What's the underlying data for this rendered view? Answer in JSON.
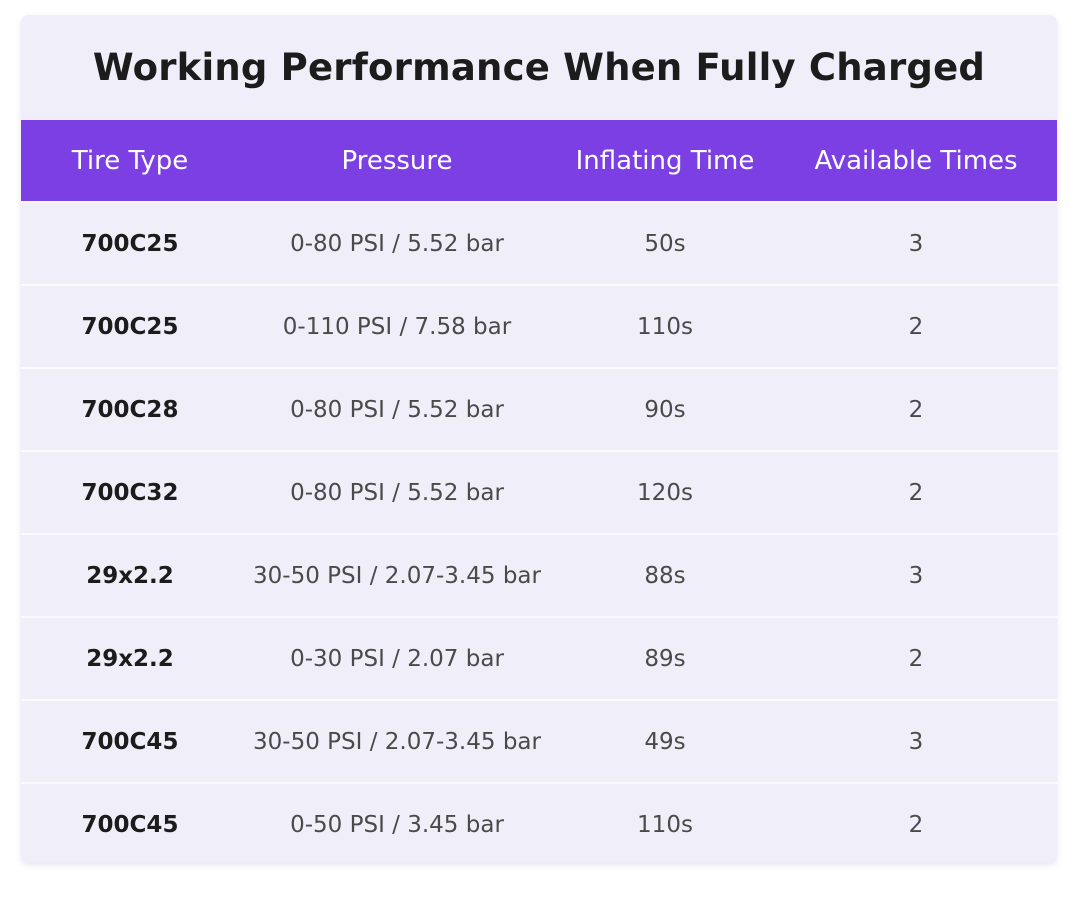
{
  "title": "Working Performance When Fully Charged",
  "table": {
    "headers": [
      "Tire Type",
      "Pressure",
      "Inflating Time",
      "Available Times"
    ],
    "rows": [
      [
        "700C25",
        "0-80 PSI / 5.52 bar",
        "50s",
        "3"
      ],
      [
        "700C25",
        "0-110 PSI / 7.58 bar",
        "110s",
        "2"
      ],
      [
        "700C28",
        "0-80 PSI / 5.52 bar",
        "90s",
        "2"
      ],
      [
        "700C32",
        "0-80 PSI / 5.52 bar",
        "120s",
        "2"
      ],
      [
        "29x2.2",
        "30-50 PSI / 2.07-3.45 bar",
        "88s",
        "3"
      ],
      [
        "29x2.2",
        "0-30 PSI / 2.07 bar",
        "89s",
        "2"
      ],
      [
        "700C45",
        "30-50 PSI / 2.07-3.45 bar",
        "49s",
        "3"
      ],
      [
        "700C45",
        "0-50 PSI / 3.45 bar",
        "110s",
        "2"
      ]
    ]
  },
  "colors": {
    "header_background": "#7b3fe4",
    "card_background": "#f0eff9",
    "header_text": "#ffffff",
    "title_text": "#1c1c1c"
  }
}
